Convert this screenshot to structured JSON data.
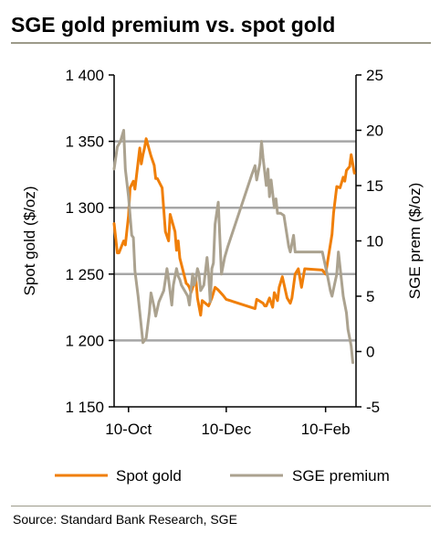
{
  "title": "SGE gold premium vs. spot gold",
  "source": "Source: Standard Bank Research, SGE",
  "chart_data": {
    "type": "line",
    "ylabel_left": "Spot gold ($/oz)",
    "ylabel_right": "SGE prem ($/oz)",
    "ylim_left": [
      1150,
      1400
    ],
    "ylim_right": [
      -5,
      25
    ],
    "yticks_left": [
      1150,
      1200,
      1250,
      1300,
      1350,
      1400
    ],
    "ytick_labels_left": [
      "1 150",
      "1 200",
      "1 250",
      "1 300",
      "1 350",
      "1 400"
    ],
    "yticks_right": [
      -5,
      0,
      5,
      10,
      15,
      20,
      25
    ],
    "ytick_labels_right": [
      "-5",
      "0",
      "5",
      "10",
      "15",
      "20",
      "25"
    ],
    "xlim": [
      "2016-10-01",
      "2017-03-01"
    ],
    "xticks": [
      "2016-10-10",
      "2016-12-10",
      "2017-02-10"
    ],
    "xtick_labels": [
      "10-Oct",
      "10-Dec",
      "10-Feb"
    ],
    "grid": "horizontal",
    "legend_position": "bottom",
    "series": [
      {
        "name": "Spot gold",
        "axis": "left",
        "color": "#f07f09",
        "x": [
          "2016-10-01",
          "2016-10-03",
          "2016-10-04",
          "2016-10-07",
          "2016-10-08",
          "2016-10-10",
          "2016-10-11",
          "2016-10-13",
          "2016-10-14",
          "2016-10-17",
          "2016-10-18",
          "2016-10-19",
          "2016-10-20",
          "2016-10-21",
          "2016-10-24",
          "2016-10-26",
          "2016-10-27",
          "2016-10-28",
          "2016-10-31",
          "2016-11-02",
          "2016-11-04",
          "2016-11-05",
          "2016-11-08",
          "2016-11-09",
          "2016-11-10",
          "2016-11-11",
          "2016-11-14",
          "2016-11-15",
          "2016-11-16",
          "2016-11-17",
          "2016-11-18",
          "2016-11-21",
          "2016-11-22",
          "2016-11-24",
          "2016-11-25",
          "2016-11-29",
          "2016-12-01",
          "2016-12-03",
          "2016-12-05",
          "2016-12-08",
          "2016-12-10",
          "2016-12-28",
          "2016-12-29",
          "2017-01-02",
          "2017-01-03",
          "2017-01-04",
          "2017-01-06",
          "2017-01-08",
          "2017-01-09",
          "2017-01-11",
          "2017-01-12",
          "2017-01-14",
          "2017-01-17",
          "2017-01-19",
          "2017-01-20",
          "2017-01-22",
          "2017-01-24",
          "2017-01-26",
          "2017-01-28",
          "2017-02-08",
          "2017-02-10",
          "2017-02-12",
          "2017-02-14",
          "2017-02-15",
          "2017-02-17",
          "2017-02-19",
          "2017-02-21",
          "2017-02-22",
          "2017-02-23",
          "2017-02-25",
          "2017-02-26",
          "2017-02-28"
        ],
        "y": [
          1288,
          1266,
          1266,
          1275,
          1272,
          1294,
          1315,
          1320,
          1314,
          1345,
          1333,
          1340,
          1345,
          1352,
          1339,
          1332,
          1322,
          1322,
          1315,
          1282,
          1275,
          1295,
          1282,
          1268,
          1275,
          1262,
          1248,
          1243,
          1242,
          1240,
          1236,
          1247,
          1232,
          1219,
          1230,
          1226,
          1232,
          1240,
          1238,
          1234,
          1231,
          1224,
          1231,
          1228,
          1226,
          1226,
          1232,
          1225,
          1236,
          1230,
          1240,
          1248,
          1232,
          1228,
          1232,
          1250,
          1254,
          1240,
          1254,
          1253,
          1250,
          1265,
          1280,
          1296,
          1316,
          1315,
          1323,
          1320,
          1328,
          1331,
          1340,
          1326
        ]
      },
      {
        "name": "SGE premium",
        "axis": "right",
        "color": "#aba28f",
        "x": [
          "2016-10-01",
          "2016-10-03",
          "2016-10-05",
          "2016-10-07",
          "2016-10-08",
          "2016-10-10",
          "2016-10-12",
          "2016-10-13",
          "2016-10-14",
          "2016-10-16",
          "2016-10-19",
          "2016-10-21",
          "2016-10-23",
          "2016-10-24",
          "2016-10-26",
          "2016-10-27",
          "2016-10-29",
          "2016-11-01",
          "2016-11-02",
          "2016-11-03",
          "2016-11-04",
          "2016-11-06",
          "2016-11-07",
          "2016-11-09",
          "2016-11-10",
          "2016-11-11",
          "2016-11-12",
          "2016-11-14",
          "2016-11-16",
          "2016-11-17",
          "2016-11-19",
          "2016-11-20",
          "2016-11-21",
          "2016-11-22",
          "2016-11-23",
          "2016-11-24",
          "2016-11-26",
          "2016-11-28",
          "2016-11-29",
          "2016-11-30",
          "2016-12-01",
          "2016-12-02",
          "2016-12-03",
          "2016-12-05",
          "2016-12-07",
          "2016-12-09",
          "2016-12-11",
          "2016-12-26",
          "2016-12-28",
          "2016-12-29",
          "2016-12-31",
          "2017-01-01",
          "2017-01-02",
          "2017-01-04",
          "2017-01-05",
          "2017-01-06",
          "2017-01-07",
          "2017-01-09",
          "2017-01-10",
          "2017-01-11",
          "2017-01-13",
          "2017-01-15",
          "2017-01-18",
          "2017-01-19",
          "2017-01-21",
          "2017-01-22",
          "2017-02-08",
          "2017-02-11",
          "2017-02-13",
          "2017-02-14",
          "2017-02-17",
          "2017-02-18",
          "2017-02-21",
          "2017-02-23",
          "2017-02-24",
          "2017-02-26",
          "2017-02-27"
        ],
        "y": [
          16.5,
          18.5,
          19.0,
          20.0,
          16.5,
          14.0,
          10.5,
          10.3,
          7.3,
          5.0,
          0.8,
          1.2,
          3.5,
          5.3,
          4.0,
          3.2,
          4.5,
          5.5,
          6.5,
          7.5,
          6.5,
          4.2,
          6.0,
          7.5,
          6.8,
          6.5,
          6.0,
          5.5,
          5.0,
          4.2,
          7.0,
          6.0,
          6.5,
          7.5,
          7.0,
          5.5,
          6.0,
          8.5,
          7.0,
          4.5,
          7.5,
          8.0,
          11.5,
          13.5,
          7.0,
          8.5,
          9.5,
          16.0,
          16.8,
          15.5,
          17.0,
          19.0,
          17.5,
          15.0,
          16.5,
          14.0,
          15.5,
          13.0,
          13.8,
          12.5,
          12.5,
          12.3,
          9.5,
          9.0,
          10.5,
          9.0,
          9.0,
          7.0,
          5.5,
          5.0,
          7.0,
          9.0,
          5.0,
          3.5,
          2.0,
          0.5,
          -1.0
        ]
      }
    ]
  }
}
